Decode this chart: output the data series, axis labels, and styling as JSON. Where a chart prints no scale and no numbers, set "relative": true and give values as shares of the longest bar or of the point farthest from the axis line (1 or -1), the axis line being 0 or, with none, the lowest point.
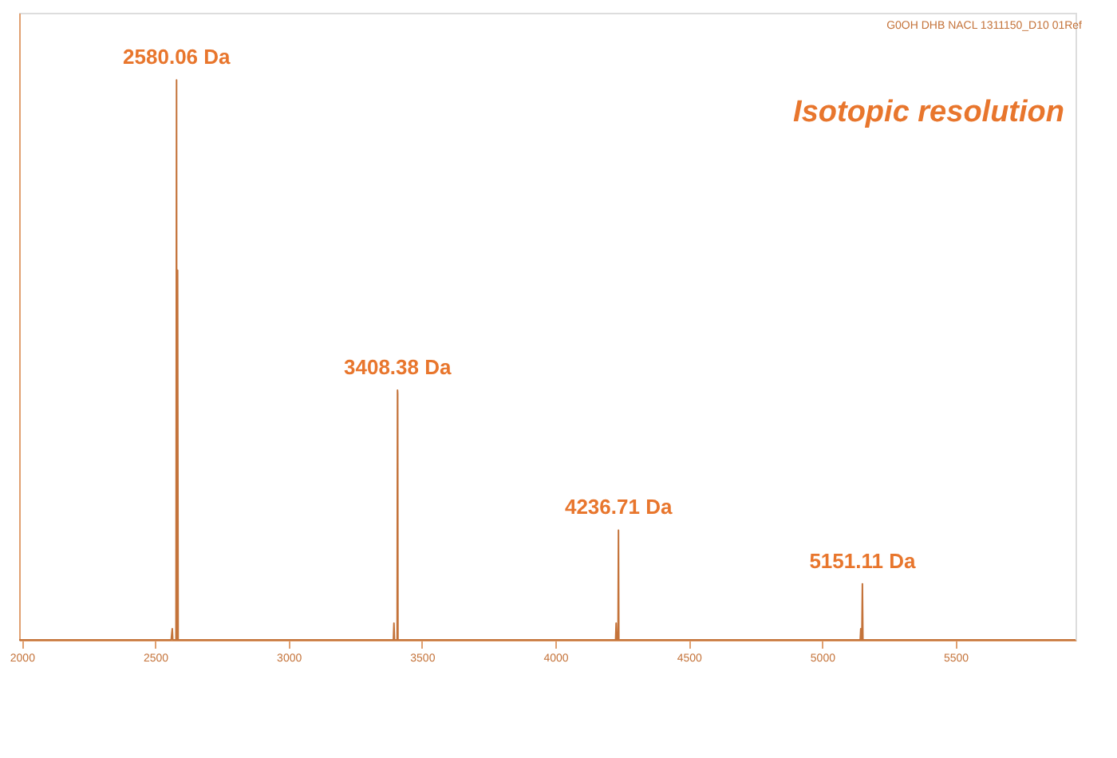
{
  "chart_data": {
    "type": "line",
    "relative": true,
    "x": [
      1990,
      2560,
      2564,
      2566,
      2568,
      2576,
      2578,
      2580.06,
      2581,
      2582,
      2584,
      2586,
      2590,
      3390,
      3393,
      3395,
      3397,
      3404,
      3406,
      3407,
      3408.38,
      3409,
      3410,
      3412,
      4220,
      4226,
      4228,
      4230,
      4233,
      4235,
      4236.71,
      4238,
      5140,
      5143,
      5145,
      5147,
      5149,
      5151.11,
      5153,
      5950
    ],
    "series": [
      {
        "color": "#c4733a",
        "values": [
          0,
          0,
          0.02,
          0,
          0,
          0,
          0,
          1,
          0,
          0,
          0.66,
          0,
          0,
          0,
          0,
          0.03,
          0,
          0,
          0,
          0,
          0.446,
          0.44,
          0,
          0,
          0,
          0,
          0.03,
          0,
          0,
          0,
          0.196,
          0,
          0,
          0,
          0.02,
          0,
          0,
          0.1,
          0,
          0
        ]
      }
    ],
    "xlim": [
      1990,
      5950
    ],
    "xticks": [
      2000,
      2500,
      3000,
      3500,
      4000,
      4500,
      5000,
      5500
    ],
    "grid": false,
    "marker": "none",
    "line_style": "solid",
    "annotations": [
      {
        "text": "2580.06 Da",
        "x": 2580.06,
        "y": 1
      },
      {
        "text": "3408.38 Da",
        "x": 3408.38,
        "y": 0.446
      },
      {
        "text": "4236.71 Da",
        "x": 4236.71,
        "y": 0.196
      },
      {
        "text": "5151.11 Da",
        "x": 5151.11,
        "y": 0.1
      },
      "Isotopic resolution",
      "G0OH DHB NACL 1311150_D10 01Ref"
    ]
  }
}
